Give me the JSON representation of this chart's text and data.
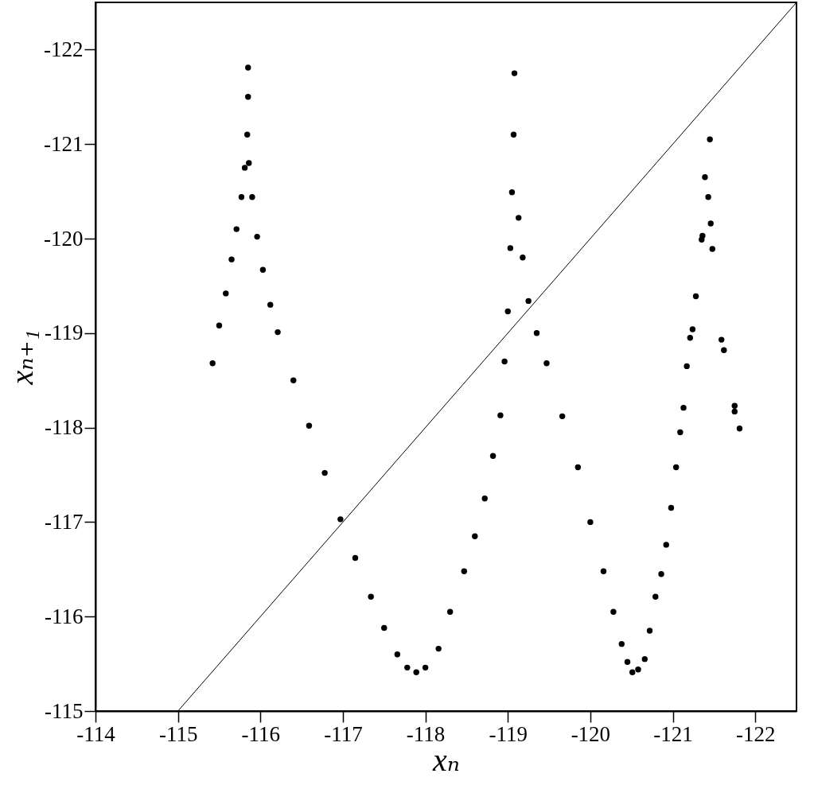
{
  "chart_data": {
    "type": "scatter",
    "xlabel": "xₙ",
    "ylabel": "xₙ₊₁",
    "xlim": [
      -114,
      -122.5
    ],
    "ylim": [
      -115,
      -122.5
    ],
    "xticks": [
      -114,
      -115,
      -116,
      -117,
      -118,
      -119,
      -120,
      -121,
      -122
    ],
    "yticks": [
      -115,
      -116,
      -117,
      -118,
      -119,
      -120,
      -121,
      -122
    ],
    "grid": false,
    "series": [
      {
        "marker": "circle",
        "color": "#000000",
        "x": [
          -115.42,
          -115.5,
          -115.58,
          -115.65,
          -115.71,
          -115.77,
          -115.81,
          -115.84,
          -115.85,
          -115.85,
          -115.86,
          -115.9,
          -115.96,
          -116.03,
          -116.12,
          -116.21,
          -116.4,
          -116.59,
          -116.78,
          -116.97,
          -117.15,
          -117.34,
          -117.5,
          -117.66,
          -117.78,
          -117.89,
          -118.0,
          -118.16,
          -118.3,
          -118.47,
          -118.6,
          -118.72,
          -118.82,
          -118.91,
          -118.96,
          -119.0,
          -119.03,
          -119.05,
          -119.07,
          -119.08,
          -119.13,
          -119.18,
          -119.25,
          -119.35,
          -119.47,
          -119.66,
          -119.85,
          -120.0,
          -120.16,
          -120.28,
          -120.38,
          -120.45,
          -120.51,
          -120.58,
          -120.66,
          -120.72,
          -120.79,
          -120.86,
          -120.92,
          -120.98,
          -121.04,
          -121.09,
          -121.13,
          -121.17,
          -121.21,
          -121.24,
          -121.28,
          -121.35,
          -121.36,
          -121.39,
          -121.43,
          -121.45,
          -121.46,
          -121.48,
          -121.59,
          -121.62,
          -121.75,
          -121.75,
          -121.81
        ],
        "values": [
          -118.68,
          -119.08,
          -119.42,
          -119.78,
          -120.1,
          -120.44,
          -120.75,
          -121.1,
          -121.5,
          -121.81,
          -120.8,
          -120.44,
          -120.02,
          -119.67,
          -119.3,
          -119.01,
          -118.5,
          -118.02,
          -117.52,
          -117.03,
          -116.62,
          -116.21,
          -115.88,
          -115.6,
          -115.46,
          -115.41,
          -115.46,
          -115.66,
          -116.05,
          -116.48,
          -116.85,
          -117.25,
          -117.7,
          -118.13,
          -118.7,
          -119.23,
          -119.9,
          -120.49,
          -121.1,
          -121.75,
          -120.22,
          -119.8,
          -119.34,
          -119.0,
          -118.68,
          -118.12,
          -117.58,
          -117.0,
          -116.48,
          -116.05,
          -115.71,
          -115.52,
          -115.41,
          -115.44,
          -115.55,
          -115.85,
          -116.21,
          -116.45,
          -116.76,
          -117.15,
          -117.58,
          -117.95,
          -118.21,
          -118.65,
          -118.95,
          -119.04,
          -119.39,
          -119.99,
          -120.03,
          -120.65,
          -120.44,
          -121.05,
          -120.16,
          -119.89,
          -118.93,
          -118.82,
          -118.23,
          -118.17,
          -117.99
        ]
      },
      {
        "type": "line",
        "color": "#000000",
        "x": [
          -115,
          -122.5
        ],
        "values": [
          -115,
          -122.5
        ]
      }
    ]
  }
}
